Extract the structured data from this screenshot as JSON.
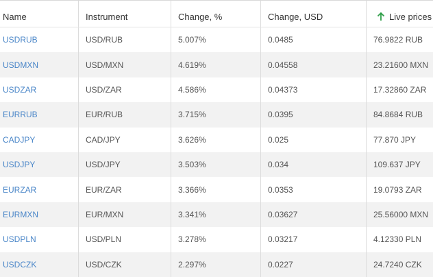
{
  "table": {
    "headers": [
      "Name",
      "Instrument",
      "Change, %",
      "Change, USD",
      "Live prices"
    ],
    "rows": [
      [
        "USDRUB",
        "USD/RUB",
        "5.007%",
        "0.0485",
        "76.9822 RUB"
      ],
      [
        "USDMXN",
        "USD/MXN",
        "4.619%",
        "0.04558",
        "23.21600 MXN"
      ],
      [
        "USDZAR",
        "USD/ZAR",
        "4.586%",
        "0.04373",
        "17.32860 ZAR"
      ],
      [
        "EURRUB",
        "EUR/RUB",
        "3.715%",
        "0.0395",
        "84.8684 RUB"
      ],
      [
        "CADJPY",
        "CAD/JPY",
        "3.626%",
        "0.025",
        "77.870 JPY"
      ],
      [
        "USDJPY",
        "USD/JPY",
        "3.503%",
        "0.034",
        "109.637 JPY"
      ],
      [
        "EURZAR",
        "EUR/ZAR",
        "3.366%",
        "0.0353",
        "19.0793 ZAR"
      ],
      [
        "EURMXN",
        "EUR/MXN",
        "3.341%",
        "0.03627",
        "25.56000 MXN"
      ],
      [
        "USDPLN",
        "USD/PLN",
        "3.278%",
        "0.03217",
        "4.12330 PLN"
      ],
      [
        "USDCZK",
        "USD/CZK",
        "2.297%",
        "0.0227",
        "24.7240 CZK"
      ]
    ]
  }
}
